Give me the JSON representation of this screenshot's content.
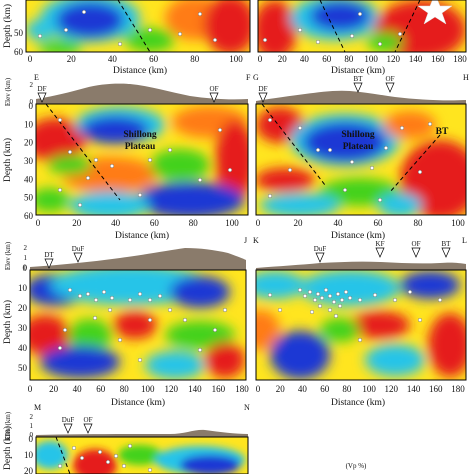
{
  "colors": {
    "red": "#e51b1b",
    "orange": "#ff7b12",
    "yellow": "#ffe51f",
    "green": "#42d21e",
    "cyan": "#26c4e8",
    "blue": "#1c37d4",
    "terrain": "#8a7b6b",
    "event": "#ffffff"
  },
  "common": {
    "xlabel": "Distance (km)",
    "ylabel": "Depth (km)",
    "elev_label": "Elev (km)"
  },
  "top_partial": {
    "left": {
      "depth_ticks": [
        "50",
        "60"
      ],
      "dist_ticks": [
        "0",
        "20",
        "40",
        "60",
        "80",
        "100"
      ]
    },
    "right": {
      "dist_ticks": [
        "0",
        "20",
        "40",
        "60",
        "80",
        "100",
        "120",
        "140",
        "160",
        "180"
      ]
    }
  },
  "panels": [
    {
      "id": "EF",
      "start_label": "E",
      "end_label": "F",
      "depth_ticks": [
        "0",
        "10",
        "20",
        "30",
        "40",
        "50",
        "60"
      ],
      "dist_ticks": [
        "0",
        "20",
        "40",
        "60",
        "80",
        "100"
      ],
      "elev_ticks": [
        "2",
        "0"
      ],
      "faults": [
        "DF",
        "OF"
      ],
      "annotations": [
        "Shillong",
        "Plateau"
      ]
    },
    {
      "id": "GH",
      "start_label": "G",
      "end_label": "H",
      "depth_ticks": [
        "0",
        "10",
        "20",
        "30",
        "40",
        "50",
        "60"
      ],
      "dist_ticks": [
        "0",
        "20",
        "40",
        "60",
        "80",
        "100"
      ],
      "faults": [
        "DF",
        "BT",
        "OF"
      ],
      "annotations": [
        "Shillong",
        "Plateau",
        "BT"
      ]
    },
    {
      "id": "IJ",
      "start_label": "",
      "end_label": "J",
      "depth_ticks": [
        "0",
        "10",
        "20",
        "30",
        "40",
        "50"
      ],
      "dist_ticks": [
        "0",
        "20",
        "40",
        "60",
        "80",
        "100",
        "120",
        "140",
        "160",
        "180"
      ],
      "elev_ticks": [
        "2",
        "1",
        "0"
      ],
      "faults": [
        "DT",
        "DuF"
      ]
    },
    {
      "id": "KL",
      "start_label": "K",
      "end_label": "L",
      "depth_ticks": [
        "0",
        "10",
        "20",
        "30",
        "40",
        "50"
      ],
      "dist_ticks": [
        "0",
        "20",
        "40",
        "60",
        "80",
        "100",
        "120",
        "140",
        "160",
        "180"
      ],
      "faults": [
        "DuF",
        "KF",
        "OF",
        "BT"
      ]
    },
    {
      "id": "MN",
      "start_label": "M",
      "end_label": "N",
      "depth_ticks": [
        "0",
        "10",
        "20"
      ],
      "elev_ticks": [
        "2",
        "1",
        "0"
      ],
      "faults": [
        "DuF",
        "OF"
      ]
    }
  ],
  "legend": {
    "title": "(Vp %)"
  }
}
